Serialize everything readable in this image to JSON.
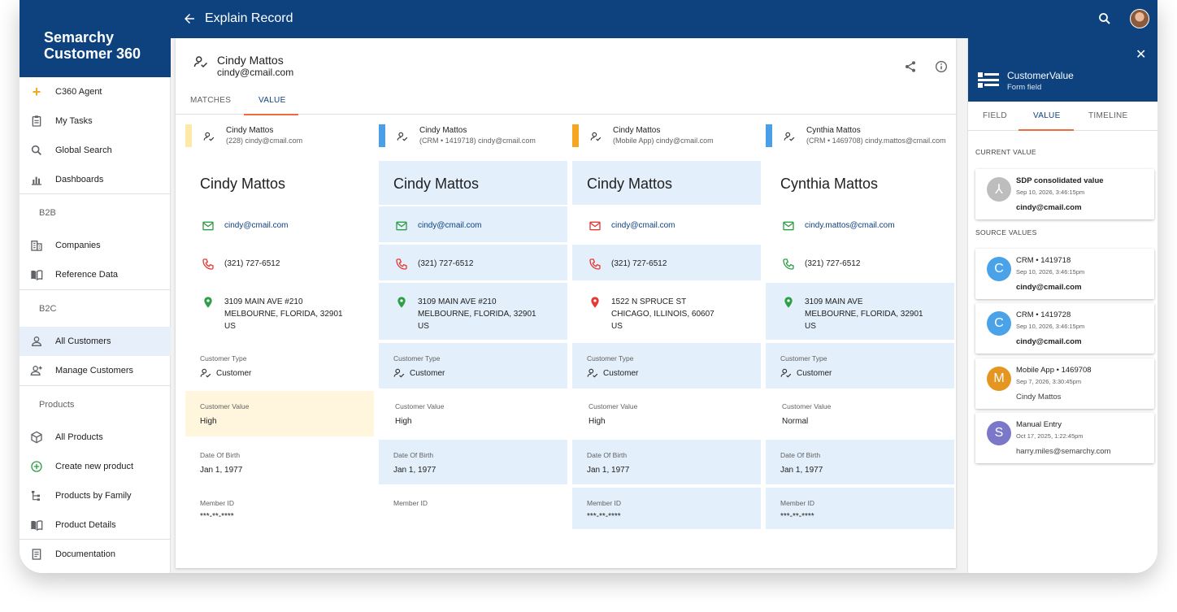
{
  "app": {
    "brand_line1": "Semarchy",
    "brand_line2": "Customer 360",
    "page_title": "Explain Record"
  },
  "colors": {
    "primary": "#0d427f",
    "accent": "#ef6c3a",
    "highlight": "#e3effa",
    "selected": "#fff6dd"
  },
  "sidebar": {
    "items_top": [
      {
        "label": "C360 Agent",
        "icon": "sparkle-icon"
      },
      {
        "label": "My Tasks",
        "icon": "clipboard-icon"
      },
      {
        "label": "Global Search",
        "icon": "search-icon"
      },
      {
        "label": "Dashboards",
        "icon": "chart-icon"
      }
    ],
    "section_b2b": "B2B",
    "items_b2b": [
      {
        "label": "Companies",
        "icon": "building-icon"
      },
      {
        "label": "Reference Data",
        "icon": "book-icon"
      }
    ],
    "section_b2c": "B2C",
    "items_b2c": [
      {
        "label": "All Customers",
        "icon": "person-icon"
      },
      {
        "label": "Manage Customers",
        "icon": "person-add-icon"
      }
    ],
    "section_products": "Products",
    "items_products": [
      {
        "label": "All Products",
        "icon": "box-icon"
      },
      {
        "label": "Create new product",
        "icon": "plus-circle-icon"
      },
      {
        "label": "Products by Family",
        "icon": "tree-icon"
      },
      {
        "label": "Product Details",
        "icon": "book-icon"
      }
    ],
    "documentation": "Documentation"
  },
  "record": {
    "name": "Cindy Mattos",
    "email": "cindy@cmail.com",
    "tabs": [
      "MATCHES",
      "VALUE"
    ],
    "active_tab": "VALUE"
  },
  "columns": [
    {
      "source_name": "Cindy Mattos",
      "source_sub": "(228) cindy@cmail.com",
      "bar_color": "#ffe9a8",
      "name": "Cindy Mattos",
      "email": "cindy@cmail.com",
      "phone": "(321) 727-6512",
      "addr1": "3109 MAIN AVE #210",
      "addr2": "MELBOURNE, FLORIDA, 32901",
      "addr3": "US",
      "customer_type_label": "Customer Type",
      "customer_type": "Customer",
      "customer_value_label": "Customer Value",
      "customer_value": "High",
      "dob_label": "Date Of Birth",
      "dob": "Jan 1, 1977",
      "member_id_label": "Member ID",
      "member_id": "***-**-****"
    },
    {
      "source_name": "Cindy Mattos",
      "source_sub": "(CRM • 1419718) cindy@cmail.com",
      "bar_color": "#4a9fe8",
      "name": "Cindy Mattos",
      "email": "cindy@cmail.com",
      "phone": "(321) 727-6512",
      "addr1": "3109 MAIN AVE #210",
      "addr2": "MELBOURNE, FLORIDA, 32901",
      "addr3": "US",
      "customer_type_label": "Customer Type",
      "customer_type": "Customer",
      "customer_value_label": "Customer Value",
      "customer_value": "High",
      "dob_label": "Date Of Birth",
      "dob": "Jan 1, 1977",
      "member_id_label": "Member ID",
      "member_id": ""
    },
    {
      "source_name": "Cindy Mattos",
      "source_sub": "(Mobile App) cindy@cmail.com",
      "bar_color": "#f5a623",
      "name": "Cindy Mattos",
      "email": "cindy@cmail.com",
      "phone": "(321) 727-6512",
      "addr1": "1522 N SPRUCE ST",
      "addr2": "CHICAGO, ILLINOIS, 60607",
      "addr3": "US",
      "customer_type_label": "Customer Type",
      "customer_type": "Customer",
      "customer_value_label": "Customer Value",
      "customer_value": "High",
      "dob_label": "Date Of Birth",
      "dob": "Jan 1, 1977",
      "member_id_label": "Member ID",
      "member_id": "***-**-****"
    },
    {
      "source_name": "Cynthia Mattos",
      "source_sub": "(CRM • 1469708) cindy.mattos@cmail.com",
      "bar_color": "#4a9fe8",
      "name": "Cynthia Mattos",
      "email": "cindy.mattos@cmail.com",
      "phone": "(321) 727-6512",
      "addr1": "3109 MAIN AVE",
      "addr2": "MELBOURNE, FLORIDA, 32901",
      "addr3": "US",
      "customer_type_label": "Customer Type",
      "customer_type": "Customer",
      "customer_value_label": "Customer Value",
      "customer_value": "Normal",
      "dob_label": "Date Of Birth",
      "dob": "Jan 1, 1977",
      "member_id_label": "Member ID",
      "member_id": "***-**-****"
    }
  ],
  "panel": {
    "title": "CustomerValue",
    "subtitle": "Form field",
    "tabs": [
      "FIELD",
      "VALUE",
      "TIMELINE"
    ],
    "active_tab": "VALUE",
    "current_label": "CURRENT VALUE",
    "source_label": "SOURCE VALUES",
    "current": {
      "avatar": "⅄",
      "name": "SDP consolidated value",
      "date": "Sep 10, 2026, 3:46:15pm",
      "value": "cindy@cmail.com",
      "color": "#bdbdbd"
    },
    "sources": [
      {
        "avatar": "C",
        "name": "CRM • 1419718",
        "date": "Sep 10, 2026, 3:46:15pm",
        "value": "cindy@cmail.com",
        "color": "#4aa3e8"
      },
      {
        "avatar": "C",
        "name": "CRM • 1419728",
        "date": "Sep 10, 2026, 3:46:15pm",
        "value": "cindy@cmail.com",
        "color": "#4aa3e8"
      },
      {
        "avatar": "M",
        "name": "Mobile App • 1469708",
        "date": "Sep 7, 2026, 3:30:45pm",
        "value": "Cindy Mattos",
        "color": "#e59621"
      },
      {
        "avatar": "S",
        "name": "Manual Entry",
        "date": "Oct 17, 2025, 1:22:45pm",
        "value": "harry.miles@semarchy.com",
        "color": "#7b77c9"
      }
    ]
  }
}
